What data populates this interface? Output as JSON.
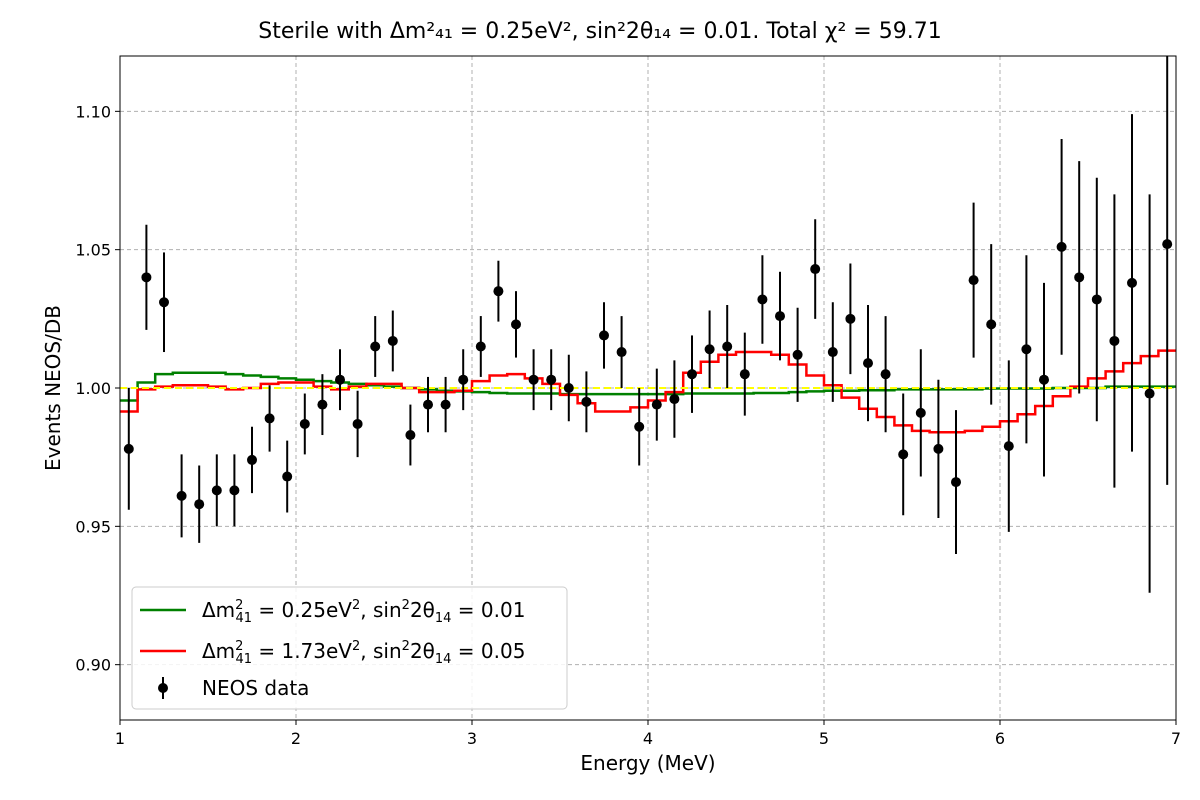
{
  "chart_data": {
    "type": "line",
    "title": "Sterile with Δm²₄₁ = 0.25eV², sin²2θ₁₄ = 0.01. Total χ² = 59.71",
    "xlabel": "Energy (MeV)",
    "ylabel": "Events NEOS/DB",
    "xlim": [
      1,
      7
    ],
    "ylim": [
      0.88,
      1.12
    ],
    "xticks": [
      1,
      2,
      3,
      4,
      5,
      6,
      7
    ],
    "yticks": [
      0.9,
      0.95,
      1.0,
      1.05,
      1.1
    ],
    "xtick_labels": [
      "1",
      "2",
      "3",
      "4",
      "5",
      "6",
      "7"
    ],
    "ytick_labels": [
      "0.90",
      "0.95",
      "1.00",
      "1.05",
      "1.10"
    ],
    "grid": true,
    "legend_position": "lower-left",
    "colors": {
      "green": "#008000",
      "red": "#ff0000",
      "yellow": "#ffff00",
      "data": "#000000",
      "grid": "#b0b0b0"
    },
    "series": [
      {
        "name": "Δm²₄₁ = 0.25eV², sin²2θ₁₄ = 0.01",
        "legend_main": "Δm",
        "legend_rest": " = 0.25eV",
        "legend_rest2": ", sin",
        "legend_rest3": "2θ",
        "legend_rest4": " = 0.01",
        "style": "step",
        "color": "#008000",
        "x": [
          1.05,
          1.15,
          1.25,
          1.35,
          1.45,
          1.55,
          1.65,
          1.75,
          1.85,
          1.95,
          2.05,
          2.15,
          2.25,
          2.35,
          2.45,
          2.55,
          2.65,
          2.75,
          2.85,
          2.95,
          3.05,
          3.15,
          3.25,
          3.35,
          3.45,
          3.55,
          3.65,
          3.75,
          3.85,
          3.95,
          4.05,
          4.15,
          4.25,
          4.35,
          4.45,
          4.55,
          4.65,
          4.75,
          4.85,
          4.95,
          5.05,
          5.15,
          5.25,
          5.35,
          5.45,
          5.55,
          5.65,
          5.75,
          5.85,
          5.95,
          6.05,
          6.15,
          6.25,
          6.35,
          6.45,
          6.55,
          6.65,
          6.75,
          6.85,
          6.95
        ],
        "values": [
          0.9955,
          1.002,
          1.005,
          1.0055,
          1.0055,
          1.0055,
          1.005,
          1.0045,
          1.004,
          1.0035,
          1.003,
          1.0025,
          1.002,
          1.0015,
          1.001,
          1.0005,
          1.0,
          0.9995,
          0.999,
          0.9988,
          0.9985,
          0.9982,
          0.998,
          0.998,
          0.998,
          0.9978,
          0.9978,
          0.9978,
          0.9978,
          0.9978,
          0.9978,
          0.9978,
          0.998,
          0.998,
          0.998,
          0.998,
          0.9982,
          0.9982,
          0.9985,
          0.9988,
          0.999,
          0.999,
          0.9992,
          0.9992,
          0.9995,
          0.9995,
          0.9995,
          0.9995,
          0.9995,
          0.9998,
          0.9998,
          0.9998,
          0.9998,
          1.0,
          1.0,
          1.0,
          1.0005,
          1.0005,
          1.0005,
          1.0005
        ]
      },
      {
        "name": "Δm²₄₁ = 1.73eV², sin²2θ₁₄ = 0.05",
        "legend_main": "Δm",
        "legend_rest": " = 1.73eV",
        "legend_rest2": ", sin",
        "legend_rest3": "2θ",
        "legend_rest4": " = 0.05",
        "style": "step",
        "color": "#ff0000",
        "x": [
          1.05,
          1.15,
          1.25,
          1.35,
          1.45,
          1.55,
          1.65,
          1.75,
          1.85,
          1.95,
          2.05,
          2.15,
          2.25,
          2.35,
          2.45,
          2.55,
          2.65,
          2.75,
          2.85,
          2.95,
          3.05,
          3.15,
          3.25,
          3.35,
          3.45,
          3.55,
          3.65,
          3.75,
          3.85,
          3.95,
          4.05,
          4.15,
          4.25,
          4.35,
          4.45,
          4.55,
          4.65,
          4.75,
          4.85,
          4.95,
          5.05,
          5.15,
          5.25,
          5.35,
          5.45,
          5.55,
          5.65,
          5.75,
          5.85,
          5.95,
          6.05,
          6.15,
          6.25,
          6.35,
          6.45,
          6.55,
          6.65,
          6.75,
          6.85,
          6.95
        ],
        "values": [
          0.9915,
          0.9995,
          1.0005,
          1.001,
          1.001,
          1.0005,
          0.9995,
          1.0,
          1.0015,
          1.002,
          1.002,
          1.0005,
          0.9995,
          1.0005,
          1.0015,
          1.0015,
          1.0,
          0.9985,
          0.9985,
          0.999,
          1.0025,
          1.0045,
          1.005,
          1.0035,
          1.0015,
          0.9975,
          0.9945,
          0.9915,
          0.9915,
          0.993,
          0.9955,
          0.9985,
          1.0055,
          1.0095,
          1.012,
          1.013,
          1.013,
          1.012,
          1.0085,
          1.0045,
          1.001,
          0.9965,
          0.9925,
          0.9895,
          0.9865,
          0.9845,
          0.984,
          0.984,
          0.9845,
          0.986,
          0.988,
          0.9905,
          0.9935,
          0.997,
          1.0005,
          1.0035,
          1.006,
          1.009,
          1.0115,
          1.0135
        ]
      },
      {
        "name": "",
        "style": "dashed",
        "color": "#ffff00",
        "x": [
          1.0,
          7.0
        ],
        "values": [
          1.0,
          1.0
        ]
      }
    ],
    "data": {
      "name": "NEOS data",
      "color": "#000000",
      "x": [
        1.05,
        1.15,
        1.25,
        1.35,
        1.45,
        1.55,
        1.65,
        1.75,
        1.85,
        1.95,
        2.05,
        2.15,
        2.25,
        2.35,
        2.45,
        2.55,
        2.65,
        2.75,
        2.85,
        2.95,
        3.05,
        3.15,
        3.25,
        3.35,
        3.45,
        3.55,
        3.65,
        3.75,
        3.85,
        3.95,
        4.05,
        4.15,
        4.25,
        4.35,
        4.45,
        4.55,
        4.65,
        4.75,
        4.85,
        4.95,
        5.05,
        5.15,
        5.25,
        5.35,
        5.45,
        5.55,
        5.65,
        5.75,
        5.85,
        5.95,
        6.05,
        6.15,
        6.25,
        6.35,
        6.45,
        6.55,
        6.65,
        6.75,
        6.85,
        6.95
      ],
      "y": [
        0.978,
        1.04,
        1.031,
        0.961,
        0.958,
        0.963,
        0.963,
        0.974,
        0.989,
        0.968,
        0.987,
        0.994,
        1.003,
        0.987,
        1.015,
        1.017,
        0.983,
        0.994,
        0.994,
        1.003,
        1.015,
        1.035,
        1.023,
        1.003,
        1.003,
        1.0,
        0.995,
        1.019,
        1.013,
        0.986,
        0.994,
        0.996,
        1.005,
        1.014,
        1.015,
        1.005,
        1.032,
        1.026,
        1.012,
        1.043,
        1.013,
        1.025,
        1.009,
        1.005,
        0.976,
        0.991,
        0.978,
        0.966,
        1.039,
        1.023,
        0.979,
        1.014,
        1.003,
        1.051,
        1.04,
        1.032,
        1.017,
        1.038,
        0.998,
        1.052
      ],
      "err": [
        0.022,
        0.019,
        0.018,
        0.015,
        0.014,
        0.013,
        0.013,
        0.012,
        0.012,
        0.013,
        0.011,
        0.011,
        0.011,
        0.012,
        0.011,
        0.011,
        0.011,
        0.01,
        0.01,
        0.011,
        0.011,
        0.011,
        0.012,
        0.011,
        0.011,
        0.012,
        0.011,
        0.012,
        0.013,
        0.014,
        0.013,
        0.014,
        0.014,
        0.014,
        0.015,
        0.015,
        0.016,
        0.016,
        0.017,
        0.018,
        0.018,
        0.02,
        0.021,
        0.021,
        0.022,
        0.023,
        0.025,
        0.026,
        0.028,
        0.029,
        0.031,
        0.034,
        0.035,
        0.039,
        0.042,
        0.044,
        0.053,
        0.061,
        0.072,
        0.087
      ]
    }
  }
}
